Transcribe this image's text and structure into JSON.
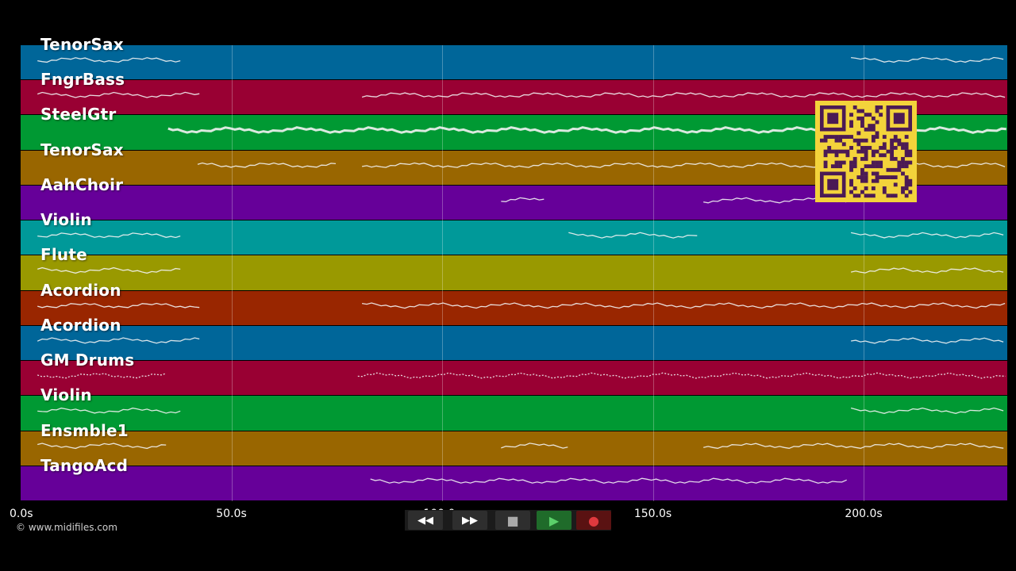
{
  "tracks": [
    {
      "label": "TenorSax",
      "color": "#006699"
    },
    {
      "label": "FngrBass",
      "color": "#990033"
    },
    {
      "label": "SteelGtr",
      "color": "#009933"
    },
    {
      "label": "TenorSax",
      "color": "#996600"
    },
    {
      "label": "AahChoir",
      "color": "#660099"
    },
    {
      "label": "Violin",
      "color": "#009999"
    },
    {
      "label": "Flute",
      "color": "#999900"
    },
    {
      "label": "Acordion",
      "color": "#992600"
    },
    {
      "label": "Acordion",
      "color": "#006699"
    },
    {
      "label": "GM Drums",
      "color": "#990033"
    },
    {
      "label": "Violin",
      "color": "#009933"
    },
    {
      "label": "Ensmble1",
      "color": "#996600"
    },
    {
      "label": "TangoAcd",
      "color": "#660099"
    }
  ],
  "timeline": {
    "ticks": [
      "0.0s",
      "50.0s",
      "100.0s",
      "150.0s",
      "200.0s"
    ],
    "tick_seconds": [
      0,
      50,
      100,
      150,
      200
    ],
    "total_seconds": 234
  },
  "note_segments": [
    [
      [
        4,
        39
      ],
      [
        197,
        234
      ]
    ],
    [
      [
        4,
        43
      ],
      [
        81,
        234
      ]
    ],
    [
      [
        35,
        234
      ]
    ],
    [
      [
        42,
        75
      ],
      [
        81,
        234
      ]
    ],
    [
      [
        114,
        125
      ],
      [
        162,
        197
      ]
    ],
    [
      [
        4,
        39
      ],
      [
        130,
        161
      ],
      [
        197,
        234
      ]
    ],
    [
      [
        4,
        39
      ],
      [
        197,
        234
      ]
    ],
    [
      [
        4,
        43
      ],
      [
        81,
        234
      ]
    ],
    [
      [
        4,
        43
      ],
      [
        197,
        234
      ]
    ],
    [
      [
        4,
        35
      ],
      [
        80,
        234
      ]
    ],
    [
      [
        4,
        39
      ],
      [
        197,
        234
      ]
    ],
    [
      [
        4,
        35
      ],
      [
        114,
        130
      ],
      [
        162,
        234
      ]
    ],
    [
      [
        83,
        197
      ]
    ]
  ],
  "copyright": "© www.midifiles.com",
  "controls": {
    "rewind_label": "◀◀",
    "forward_label": "▶▶",
    "stop_label": "■",
    "play_label": "▶",
    "record_label": "●"
  },
  "colors": {
    "background": "#000000",
    "qr_background": "#f3d33b",
    "qr_modules": "#4b1a55"
  },
  "icons": [
    "rewind-icon",
    "fast-forward-icon",
    "stop-icon",
    "play-icon",
    "record-icon",
    "qr-code-icon"
  ]
}
